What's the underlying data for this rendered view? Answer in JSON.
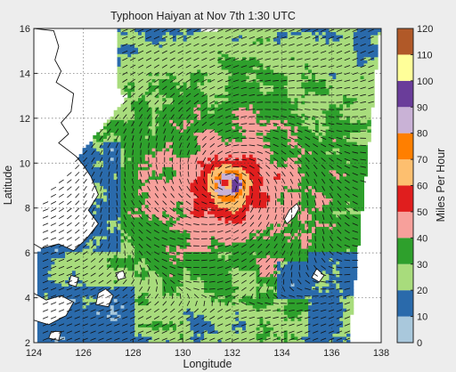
{
  "chart_data": {
    "type": "heatmap",
    "title": "Typhoon Haiyan at Nov 7th 1:30 UTC",
    "xlabel": "Longitude",
    "ylabel": "Latitude",
    "xlim": [
      124,
      138
    ],
    "ylim": [
      2,
      16
    ],
    "x_ticks": [
      124,
      126,
      128,
      130,
      132,
      134,
      136,
      138
    ],
    "y_ticks": [
      2,
      4,
      6,
      8,
      10,
      12,
      14,
      16
    ],
    "grid": true,
    "colorbar": {
      "label": "Miles Per Hour",
      "ticks": [
        0,
        10,
        20,
        30,
        40,
        50,
        60,
        70,
        80,
        90,
        100,
        110,
        120
      ],
      "bins": [
        {
          "min": 0,
          "max": 10,
          "color": "#a9c8dc"
        },
        {
          "min": 10,
          "max": 20,
          "color": "#2a6aab"
        },
        {
          "min": 20,
          "max": 30,
          "color": "#a8dc7c"
        },
        {
          "min": 30,
          "max": 40,
          "color": "#2ea02c"
        },
        {
          "min": 40,
          "max": 50,
          "color": "#f7a09b"
        },
        {
          "min": 50,
          "max": 60,
          "color": "#e01e1e"
        },
        {
          "min": 60,
          "max": 70,
          "color": "#fdbf6f"
        },
        {
          "min": 70,
          "max": 80,
          "color": "#ff7f00"
        },
        {
          "min": 80,
          "max": 90,
          "color": "#c9b2d6"
        },
        {
          "min": 90,
          "max": 100,
          "color": "#6a3d9a"
        },
        {
          "min": 100,
          "max": 110,
          "color": "#ffff99"
        },
        {
          "min": 110,
          "max": 120,
          "color": "#b15928"
        }
      ]
    },
    "storm_center": {
      "lon": 131.8,
      "lat": 9.1
    },
    "peak_speed_mph": 95
  }
}
